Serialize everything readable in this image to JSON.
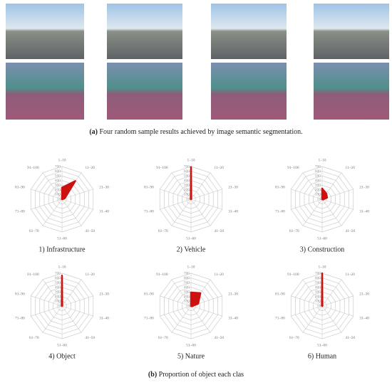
{
  "figure": {
    "caption_a": {
      "label": "(a)",
      "text": " Four random sample results achieved by image semantic segmentation."
    },
    "caption_b": {
      "label": "(b)",
      "text": " Proportion of object each clas"
    }
  },
  "chart_data": [
    {
      "type": "radar",
      "title": "1) Infrastructure",
      "categories": [
        "1–10",
        "11–20",
        "21–30",
        "31–40",
        "41–50",
        "51–60",
        "61–70",
        "71–80",
        "81–90",
        "91–100"
      ],
      "values": [
        250,
        480,
        60,
        0,
        0,
        0,
        0,
        0,
        0,
        0
      ],
      "rlim": [
        0,
        700
      ],
      "rticks": [
        0,
        100,
        200,
        300,
        400,
        500,
        600,
        700
      ],
      "color": "#cc1111"
    },
    {
      "type": "radar",
      "title": "2) Vehicle",
      "categories": [
        "1–10",
        "11–20",
        "21–30",
        "31–40",
        "41–50",
        "51–60",
        "61–70",
        "71–80",
        "81–90",
        "91–100"
      ],
      "values": [
        690,
        10,
        0,
        0,
        0,
        0,
        0,
        0,
        0,
        10
      ],
      "rlim": [
        0,
        700
      ],
      "rticks": [
        0,
        100,
        200,
        300,
        400,
        500,
        600,
        700
      ],
      "color": "#cc1111"
    },
    {
      "type": "radar",
      "title": "3) Construction",
      "categories": [
        "1–10",
        "11–20",
        "21–30",
        "31–40",
        "41–50",
        "51–60",
        "61–70",
        "71–80",
        "81–90",
        "91–100"
      ],
      "values": [
        230,
        150,
        110,
        20,
        0,
        0,
        0,
        0,
        0,
        0
      ],
      "rlim": [
        0,
        700
      ],
      "rticks": [
        0,
        100,
        200,
        300,
        400,
        500,
        600,
        700
      ],
      "color": "#cc1111"
    },
    {
      "type": "radar",
      "title": "4) Object",
      "categories": [
        "1–10",
        "11–20",
        "21–30",
        "31–40",
        "41–50",
        "51–60",
        "61–70",
        "71–80",
        "81–90",
        "91–100"
      ],
      "values": [
        650,
        10,
        0,
        0,
        0,
        0,
        0,
        0,
        0,
        10
      ],
      "rlim": [
        0,
        700
      ],
      "rticks": [
        0,
        100,
        200,
        300,
        400,
        500,
        600,
        700
      ],
      "color": "#cc1111"
    },
    {
      "type": "radar",
      "title": "5) Nature",
      "categories": [
        "1–10",
        "11–20",
        "21–30",
        "31–40",
        "41–50",
        "51–60",
        "61–70",
        "71–80",
        "81–90",
        "91–100"
      ],
      "values": [
        290,
        340,
        160,
        20,
        0,
        0,
        0,
        0,
        0,
        0
      ],
      "rlim": [
        0,
        700
      ],
      "rticks": [
        0,
        100,
        200,
        300,
        400,
        500,
        600,
        700
      ],
      "color": "#cc1111"
    },
    {
      "type": "radar",
      "title": "6) Human",
      "categories": [
        "1–10",
        "11–20",
        "21–30",
        "31–40",
        "41–50",
        "51–60",
        "61–70",
        "71–80",
        "81–90",
        "91–100"
      ],
      "values": [
        700,
        10,
        0,
        0,
        0,
        0,
        0,
        0,
        0,
        10
      ],
      "rlim": [
        0,
        700
      ],
      "rticks": [
        0,
        100,
        200,
        300,
        400,
        500,
        600,
        700
      ],
      "color": "#cc1111"
    }
  ]
}
